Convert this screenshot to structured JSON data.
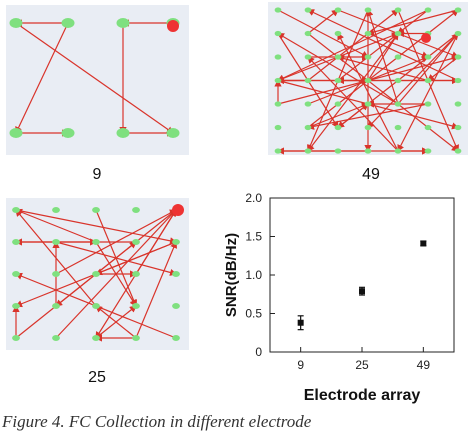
{
  "panels": {
    "p9": {
      "label": "9",
      "node_color": "#7fe07f",
      "marker_color": "#ee3333",
      "arrow_color": "#d9342b"
    },
    "p49": {
      "label": "49",
      "node_color": "#7fe07f",
      "marker_color": "#ee3333",
      "arrow_color": "#d9342b"
    },
    "p25": {
      "label": "25",
      "node_color": "#7fe07f",
      "marker_color": "#ee3333",
      "arrow_color": "#d9342b"
    }
  },
  "caption": "Figure 4. FC Collection in different electrode",
  "chart_data": {
    "type": "scatter",
    "categories": [
      "9",
      "25",
      "49"
    ],
    "values": [
      0.38,
      0.79,
      1.41
    ],
    "error": [
      0.09,
      0.05,
      0.03
    ],
    "xlabel": "Electrode array",
    "ylabel": "SNR(dB/Hz)",
    "ylim": [
      0,
      2.0
    ],
    "yticks": [
      "0",
      "0.5",
      "1.0",
      "1.5",
      "2.0"
    ],
    "grid": false,
    "marker_color": "#111111"
  }
}
